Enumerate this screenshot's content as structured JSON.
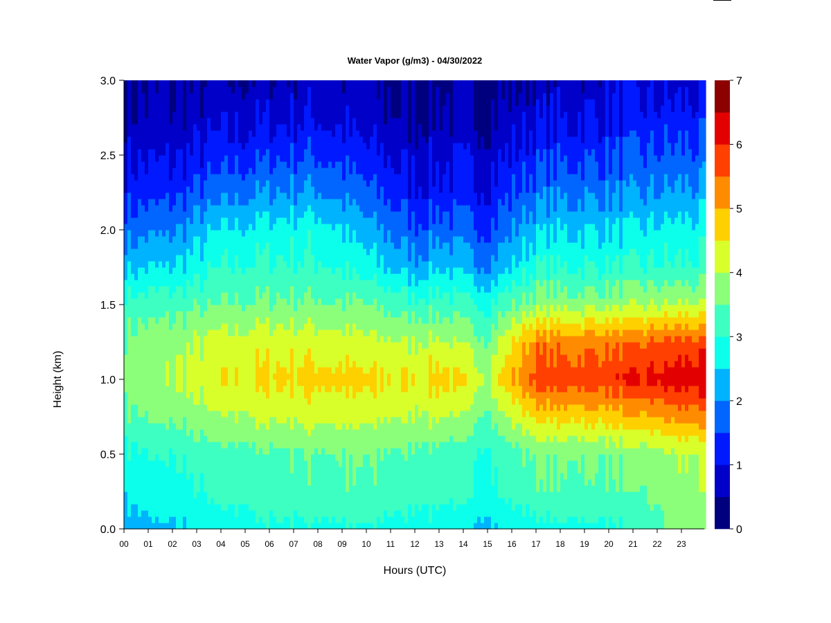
{
  "chart_data": {
    "type": "heatmap",
    "title": "Water Vapor (g/m3) - 04/30/2022",
    "xlabel": "Hours (UTC)",
    "ylabel": "Height (km)",
    "xlim": [
      0,
      24
    ],
    "ylim": [
      0,
      3.0
    ],
    "x_tick_labels": [
      "00",
      "01",
      "02",
      "03",
      "04",
      "05",
      "06",
      "07",
      "08",
      "09",
      "10",
      "11",
      "12",
      "13",
      "14",
      "15",
      "16",
      "17",
      "18",
      "19",
      "20",
      "21",
      "22",
      "23"
    ],
    "y_tick_labels": [
      "0.0",
      "0.5",
      "1.0",
      "1.5",
      "2.0",
      "2.5",
      "3.0"
    ],
    "y_tick_values": [
      0,
      0.5,
      1.0,
      1.5,
      2.0,
      2.5,
      3.0
    ],
    "colorbar": {
      "tick_labels": [
        "0",
        "1",
        "2",
        "3",
        "4",
        "5",
        "6",
        "7"
      ],
      "tick_values": [
        0,
        1,
        2,
        3,
        4,
        5,
        6,
        7
      ],
      "levels": [
        0,
        0.5,
        1,
        1.5,
        2,
        2.5,
        3,
        3.5,
        4,
        4.5,
        5,
        5.5,
        6,
        6.5,
        7
      ],
      "colors": [
        "#00007f",
        "#0000c8",
        "#0019ff",
        "#0066ff",
        "#00b3ff",
        "#0cffeb",
        "#3dffc2",
        "#8cff7a",
        "#d9ff2b",
        "#ffd000",
        "#ff8c00",
        "#ff4000",
        "#e30000",
        "#8c0000"
      ]
    },
    "grid": false,
    "contour_levels_z_x_height": {
      "height_km": [
        0.0,
        0.25,
        0.5,
        0.75,
        1.0,
        1.25,
        1.5,
        1.75,
        2.0,
        2.25,
        2.5,
        2.75,
        3.0
      ],
      "profiles_by_hour": {
        "00": [
          2.3,
          2.6,
          2.9,
          3.4,
          3.8,
          3.6,
          3.2,
          2.4,
          1.8,
          1.3,
          0.9,
          0.6,
          0.4
        ],
        "02": [
          2.4,
          2.8,
          3.0,
          3.6,
          4.0,
          3.8,
          3.3,
          2.5,
          1.9,
          1.3,
          0.9,
          0.6,
          0.4
        ],
        "04": [
          2.7,
          3.1,
          3.3,
          3.9,
          4.4,
          4.2,
          3.5,
          3.0,
          2.5,
          1.8,
          1.2,
          0.8,
          0.5
        ],
        "06": [
          2.9,
          3.3,
          3.4,
          4.1,
          4.6,
          4.3,
          3.6,
          3.1,
          2.7,
          2.0,
          1.4,
          0.9,
          0.6
        ],
        "08": [
          2.9,
          3.4,
          3.5,
          4.2,
          4.7,
          4.3,
          3.6,
          3.1,
          2.8,
          2.1,
          1.5,
          1.0,
          0.7
        ],
        "10": [
          2.9,
          3.4,
          3.5,
          4.1,
          4.6,
          4.1,
          3.5,
          2.7,
          2.2,
          1.6,
          1.1,
          0.7,
          0.5
        ],
        "12": [
          2.8,
          3.2,
          3.4,
          4.0,
          4.5,
          4.0,
          3.2,
          2.2,
          1.6,
          1.1,
          0.8,
          0.5,
          0.3
        ],
        "13": [
          2.8,
          3.2,
          3.3,
          4.1,
          4.8,
          4.1,
          3.3,
          2.5,
          1.8,
          1.2,
          0.9,
          0.6,
          0.4
        ],
        "15": [
          2.4,
          2.9,
          3.0,
          3.5,
          4.1,
          3.6,
          3.0,
          2.0,
          1.5,
          1.1,
          0.8,
          0.5,
          0.3
        ],
        "17": [
          2.8,
          3.4,
          3.6,
          4.6,
          5.8,
          5.3,
          3.8,
          3.0,
          2.4,
          1.8,
          1.3,
          0.9,
          0.6
        ],
        "19": [
          2.9,
          3.4,
          3.6,
          4.7,
          5.8,
          5.3,
          3.8,
          3.0,
          2.5,
          1.9,
          1.4,
          1.0,
          0.7
        ],
        "21": [
          2.9,
          3.4,
          3.6,
          4.8,
          6.0,
          5.4,
          3.9,
          3.0,
          2.5,
          1.9,
          1.5,
          1.1,
          0.8
        ],
        "23": [
          3.7,
          3.9,
          4.0,
          5.2,
          6.3,
          5.7,
          4.0,
          3.1,
          2.7,
          2.1,
          1.6,
          1.2,
          0.8
        ]
      }
    }
  }
}
